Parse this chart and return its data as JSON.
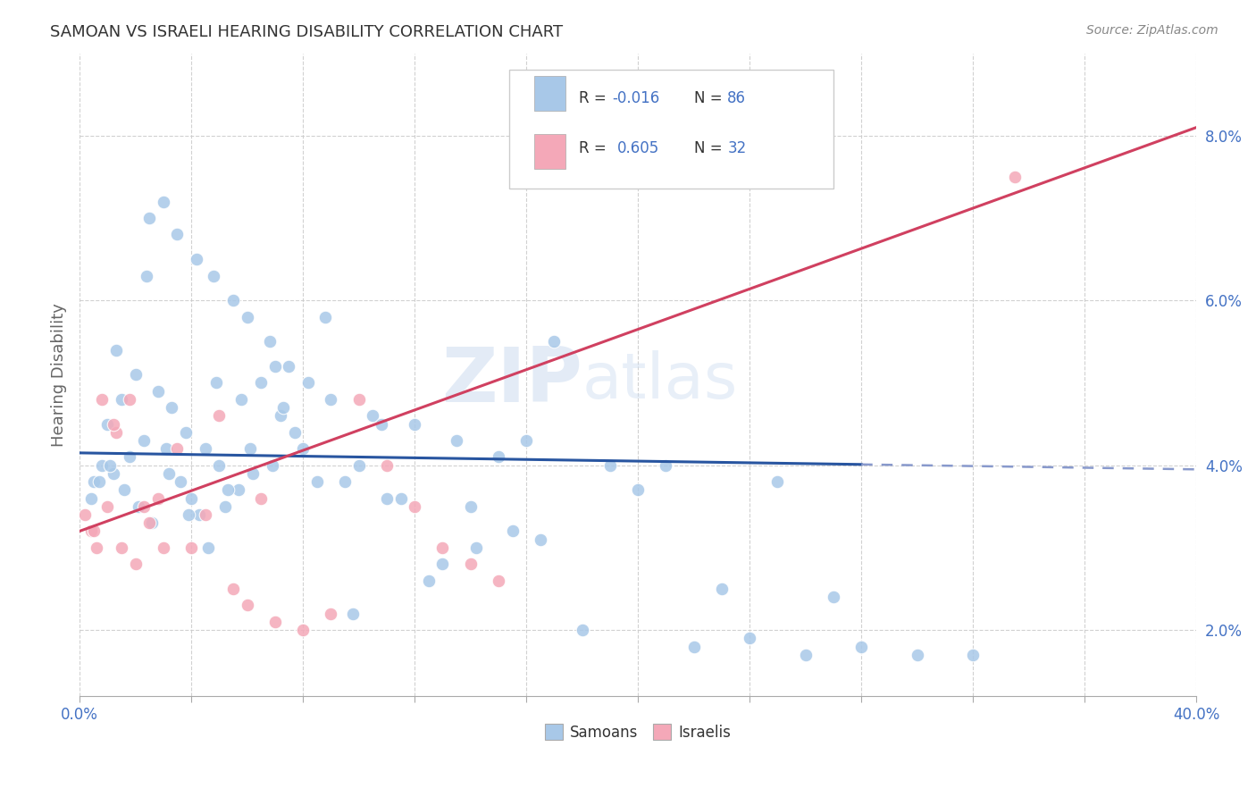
{
  "title": "SAMOAN VS ISRAELI HEARING DISABILITY CORRELATION CHART",
  "source": "Source: ZipAtlas.com",
  "ylabel": "Hearing Disability",
  "legend_label1": "Samoans",
  "legend_label2": "Israelis",
  "blue_color": "#a8c8e8",
  "pink_color": "#f4a8b8",
  "line_blue": "#2855a0",
  "line_pink": "#d04060",
  "line_blue_dash": "#8899cc",
  "background_color": "#ffffff",
  "grid_color": "#cccccc",
  "axis_color": "#4472c4",
  "samoans_x": [
    2.5,
    3.0,
    3.5,
    4.2,
    4.8,
    5.5,
    6.0,
    6.8,
    7.5,
    8.2,
    9.0,
    10.5,
    12.0,
    13.5,
    15.0,
    17.0,
    19.0,
    21.0,
    23.0,
    25.0,
    1.0,
    1.5,
    2.0,
    2.8,
    3.3,
    3.8,
    4.5,
    5.0,
    5.8,
    6.5,
    7.2,
    8.0,
    9.5,
    11.0,
    14.0,
    16.0,
    20.0,
    24.0,
    28.0,
    30.0,
    0.5,
    0.8,
    1.2,
    1.8,
    2.3,
    3.1,
    3.6,
    4.0,
    4.3,
    5.2,
    5.7,
    6.2,
    6.9,
    7.7,
    8.5,
    10.0,
    11.5,
    13.0,
    16.5,
    22.0,
    0.4,
    0.7,
    1.1,
    1.6,
    2.1,
    2.6,
    3.2,
    3.9,
    4.6,
    5.3,
    6.1,
    7.0,
    8.8,
    12.5,
    18.0,
    26.0,
    32.0,
    15.5,
    9.8,
    27.0,
    1.3,
    2.4,
    4.9,
    7.3,
    10.8,
    14.2
  ],
  "samoans_y": [
    7.0,
    7.2,
    6.8,
    6.5,
    6.3,
    6.0,
    5.8,
    5.5,
    5.2,
    5.0,
    4.8,
    4.6,
    4.5,
    4.3,
    4.1,
    5.5,
    4.0,
    4.0,
    2.5,
    3.8,
    4.5,
    4.8,
    5.1,
    4.9,
    4.7,
    4.4,
    4.2,
    4.0,
    4.8,
    5.0,
    4.6,
    4.2,
    3.8,
    3.6,
    3.5,
    4.3,
    3.7,
    1.9,
    1.8,
    1.7,
    3.8,
    4.0,
    3.9,
    4.1,
    4.3,
    4.2,
    3.8,
    3.6,
    3.4,
    3.5,
    3.7,
    3.9,
    4.0,
    4.4,
    3.8,
    4.0,
    3.6,
    2.8,
    3.1,
    1.8,
    3.6,
    3.8,
    4.0,
    3.7,
    3.5,
    3.3,
    3.9,
    3.4,
    3.0,
    3.7,
    4.2,
    5.2,
    5.8,
    2.6,
    2.0,
    1.7,
    1.7,
    3.2,
    2.2,
    2.4,
    5.4,
    6.3,
    5.0,
    4.7,
    4.5,
    3.0
  ],
  "israelis_x": [
    0.2,
    0.4,
    0.6,
    0.8,
    1.0,
    1.3,
    1.5,
    1.8,
    2.0,
    2.3,
    2.5,
    2.8,
    3.0,
    3.5,
    4.0,
    4.5,
    5.0,
    5.5,
    6.0,
    6.5,
    7.0,
    8.0,
    9.0,
    10.0,
    11.0,
    12.0,
    13.0,
    14.0,
    15.0,
    33.5,
    0.5,
    1.2
  ],
  "israelis_y": [
    3.4,
    3.2,
    3.0,
    4.8,
    3.5,
    4.4,
    3.0,
    4.8,
    2.8,
    3.5,
    3.3,
    3.6,
    3.0,
    4.2,
    3.0,
    3.4,
    4.6,
    2.5,
    2.3,
    3.6,
    2.1,
    2.0,
    2.2,
    4.8,
    4.0,
    3.5,
    3.0,
    2.8,
    2.6,
    7.5,
    3.2,
    4.5
  ],
  "blue_line_x1": 0,
  "blue_line_y1": 4.15,
  "blue_line_x2": 40,
  "blue_line_y2": 3.95,
  "blue_solid_end": 28,
  "pink_line_x1": 0,
  "pink_line_y1": 3.2,
  "pink_line_x2": 40,
  "pink_line_y2": 8.1,
  "xlim": [
    0,
    40
  ],
  "ylim": [
    1.2,
    9.0
  ],
  "yticks": [
    2,
    4,
    6,
    8
  ],
  "xticks_minor": [
    0,
    4,
    8,
    12,
    16,
    20,
    24,
    28,
    32,
    36,
    40
  ]
}
